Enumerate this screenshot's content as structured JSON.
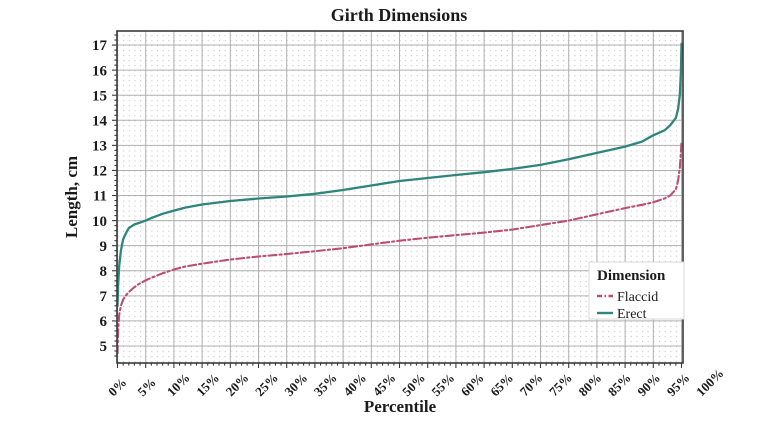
{
  "page": {
    "background": "#ffffff"
  },
  "chart_data": {
    "type": "line",
    "title": "Girth Dimensions",
    "xlabel": "Percentile",
    "ylabel": "Length, cm",
    "x_ticks": [
      0,
      5,
      10,
      15,
      20,
      25,
      30,
      35,
      40,
      45,
      50,
      55,
      60,
      65,
      70,
      75,
      80,
      85,
      90,
      95,
      100
    ],
    "x_tick_labels": [
      "0%",
      "5%",
      "10%",
      "15%",
      "20%",
      "25%",
      "30%",
      "35%",
      "40%",
      "45%",
      "50%",
      "55%",
      "60%",
      "65%",
      "70%",
      "75%",
      "80%",
      "85%",
      "90%",
      "95%",
      "100%"
    ],
    "y_ticks": [
      5,
      6,
      7,
      8,
      9,
      10,
      11,
      12,
      13,
      14,
      15,
      16,
      17
    ],
    "y_tick_labels": [
      "5",
      "6",
      "7",
      "8",
      "9",
      "10",
      "11",
      "12",
      "13",
      "14",
      "15",
      "16",
      "17"
    ],
    "xlim": [
      0,
      100
    ],
    "ylim": [
      4.4,
      17.6
    ],
    "grid": {
      "major": "solid gray",
      "minor": "dotted",
      "major_color": "#b0b0b0",
      "minor_dot_color": "#c7c7c7"
    },
    "legend": {
      "title": "Dimension",
      "position": "bottom-right",
      "entries": [
        {
          "label": "Flaccid",
          "style": "dash-dot",
          "color": "#bc4d74"
        },
        {
          "label": "Erect",
          "style": "solid",
          "color": "#2e857c"
        }
      ]
    },
    "series": [
      {
        "name": "Flaccid",
        "color": "#bc4d74",
        "dash": "dash-dot",
        "points": [
          [
            0,
            4.7
          ],
          [
            0.1,
            5.6
          ],
          [
            0.3,
            6.25
          ],
          [
            0.6,
            6.6
          ],
          [
            1,
            6.85
          ],
          [
            1.5,
            7.02
          ],
          [
            2,
            7.15
          ],
          [
            3,
            7.35
          ],
          [
            4,
            7.5
          ],
          [
            5,
            7.62
          ],
          [
            6,
            7.72
          ],
          [
            8,
            7.9
          ],
          [
            10,
            8.05
          ],
          [
            12,
            8.17
          ],
          [
            15,
            8.28
          ],
          [
            20,
            8.45
          ],
          [
            25,
            8.57
          ],
          [
            30,
            8.67
          ],
          [
            35,
            8.78
          ],
          [
            40,
            8.9
          ],
          [
            45,
            9.05
          ],
          [
            50,
            9.2
          ],
          [
            55,
            9.32
          ],
          [
            60,
            9.42
          ],
          [
            65,
            9.52
          ],
          [
            70,
            9.64
          ],
          [
            75,
            9.82
          ],
          [
            80,
            10.0
          ],
          [
            85,
            10.25
          ],
          [
            90,
            10.5
          ],
          [
            93,
            10.63
          ],
          [
            95,
            10.73
          ],
          [
            97,
            10.88
          ],
          [
            98,
            11.0
          ],
          [
            99,
            11.25
          ],
          [
            99.4,
            11.6
          ],
          [
            99.7,
            12.1
          ],
          [
            99.9,
            12.7
          ],
          [
            100,
            13.15
          ]
        ]
      },
      {
        "name": "Erect",
        "color": "#2e857c",
        "dash": "solid",
        "points": [
          [
            0,
            6.6
          ],
          [
            0.1,
            7.4
          ],
          [
            0.3,
            8.2
          ],
          [
            0.6,
            8.8
          ],
          [
            1,
            9.25
          ],
          [
            1.5,
            9.5
          ],
          [
            2,
            9.7
          ],
          [
            3,
            9.85
          ],
          [
            4,
            9.92
          ],
          [
            5,
            10.0
          ],
          [
            6,
            10.1
          ],
          [
            8,
            10.27
          ],
          [
            10,
            10.4
          ],
          [
            12,
            10.52
          ],
          [
            15,
            10.64
          ],
          [
            20,
            10.78
          ],
          [
            25,
            10.88
          ],
          [
            30,
            10.96
          ],
          [
            35,
            11.07
          ],
          [
            40,
            11.22
          ],
          [
            45,
            11.4
          ],
          [
            50,
            11.58
          ],
          [
            55,
            11.7
          ],
          [
            60,
            11.82
          ],
          [
            65,
            11.93
          ],
          [
            70,
            12.06
          ],
          [
            75,
            12.22
          ],
          [
            80,
            12.45
          ],
          [
            85,
            12.7
          ],
          [
            90,
            12.95
          ],
          [
            93,
            13.15
          ],
          [
            95,
            13.4
          ],
          [
            97,
            13.6
          ],
          [
            98,
            13.8
          ],
          [
            99,
            14.1
          ],
          [
            99.4,
            14.45
          ],
          [
            99.7,
            15.0
          ],
          [
            99.9,
            15.9
          ],
          [
            100,
            17.05
          ]
        ]
      }
    ]
  }
}
